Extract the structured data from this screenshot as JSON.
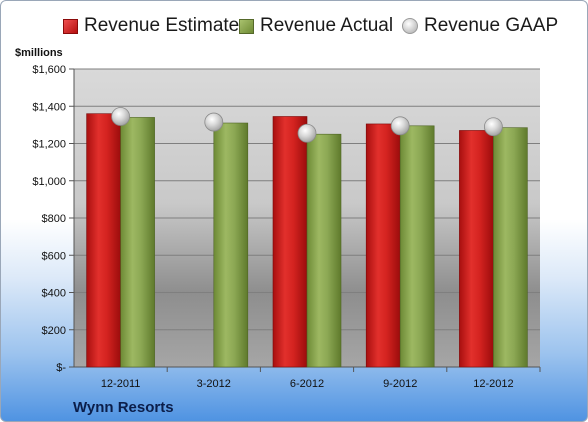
{
  "chart_data": {
    "type": "bar",
    "ylabel": "$millions",
    "company": "Wynn Resorts",
    "categories": [
      "12-2011",
      "3-2012",
      "6-2012",
      "9-2012",
      "12-2012"
    ],
    "ylim": [
      0,
      1600
    ],
    "yticks": [
      0,
      200,
      400,
      600,
      800,
      1000,
      1200,
      1400,
      1600
    ],
    "ytick_labels": [
      "$-",
      "$200",
      "$400",
      "$600",
      "$800",
      "$1,000",
      "$1,200",
      "$1,400",
      "$1,600"
    ],
    "series": [
      {
        "name": "Revenue Estimate",
        "kind": "bar",
        "values": [
          1360,
          null,
          1345,
          1305,
          1270
        ],
        "color": "#d0211e"
      },
      {
        "name": "Revenue Actual",
        "kind": "bar",
        "values": [
          1340,
          1310,
          1250,
          1295,
          1285
        ],
        "color": "#8fab55"
      },
      {
        "name": "Revenue GAAP",
        "kind": "marker",
        "values": [
          1345,
          1315,
          1255,
          1295,
          1290
        ],
        "color": "#c8c8c8"
      }
    ],
    "grid": true,
    "legend": "top"
  }
}
